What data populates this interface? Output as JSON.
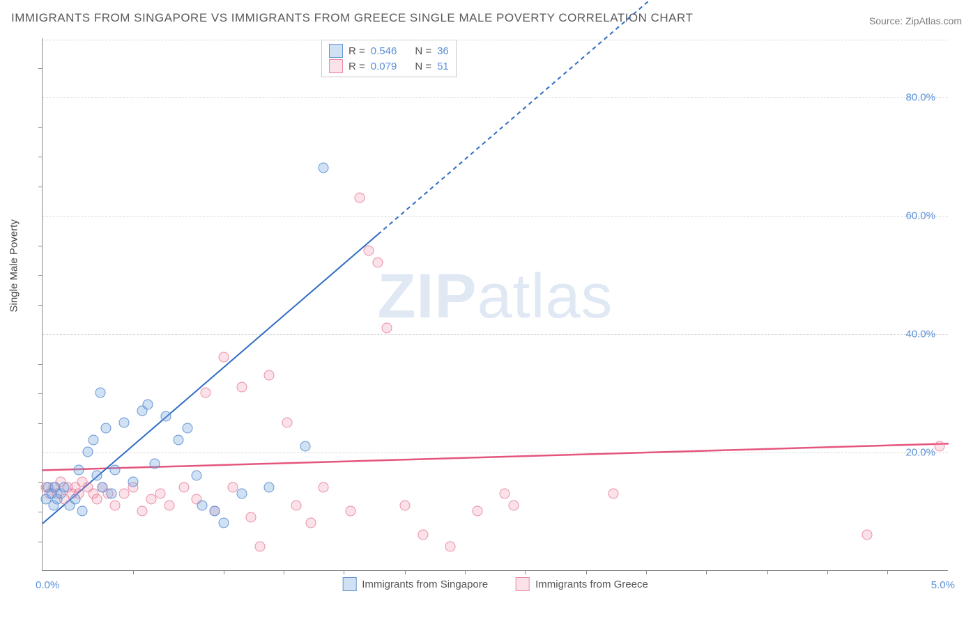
{
  "title": "IMMIGRANTS FROM SINGAPORE VS IMMIGRANTS FROM GREECE SINGLE MALE POVERTY CORRELATION CHART",
  "source": "Source: ZipAtlas.com",
  "y_axis_label": "Single Male Poverty",
  "watermark": "ZIPatlas",
  "chart": {
    "type": "scatter",
    "xlim": [
      0.0,
      5.0
    ],
    "ylim": [
      0.0,
      90.0
    ],
    "y_ticks": [
      20.0,
      40.0,
      60.0,
      80.0
    ],
    "y_tick_labels": [
      "20.0%",
      "40.0%",
      "60.0%",
      "80.0%"
    ],
    "x_range_labels": {
      "min": "0.0%",
      "max": "5.0%"
    },
    "x_minor_ticks": [
      0.5,
      1.0,
      1.33,
      1.66,
      2.0,
      2.33,
      2.66,
      3.0,
      3.33,
      3.66,
      4.0,
      4.33,
      4.66
    ],
    "y_minor_ticks": [
      5,
      10,
      15,
      25,
      30,
      35,
      45,
      50,
      55,
      65,
      70,
      75,
      85
    ],
    "background_color": "#ffffff",
    "grid_color": "#d8d8d8",
    "axis_color": "#888888",
    "tick_label_color": "#5b8fd6",
    "title_color": "#5a5a5a",
    "title_fontsize": 17,
    "label_fontsize": 15,
    "marker_size": 15
  },
  "series": {
    "singapore": {
      "label": "Immigrants from Singapore",
      "fill_color": "rgba(120,168,224,0.35)",
      "stroke_color": "rgba(90,140,210,0.9)",
      "R": "0.546",
      "N": "36",
      "trend": {
        "y_at_x0": 8.0,
        "y_at_xmax": 140.0,
        "solid_until_x": 1.85,
        "line_color": "#2d6bc4",
        "line_width": 2,
        "dash": "6,5"
      },
      "points": [
        [
          0.02,
          12
        ],
        [
          0.03,
          14
        ],
        [
          0.05,
          13
        ],
        [
          0.06,
          11
        ],
        [
          0.07,
          14
        ],
        [
          0.08,
          12
        ],
        [
          0.1,
          13
        ],
        [
          0.12,
          14
        ],
        [
          0.15,
          11
        ],
        [
          0.18,
          12
        ],
        [
          0.2,
          17
        ],
        [
          0.22,
          10
        ],
        [
          0.25,
          20
        ],
        [
          0.28,
          22
        ],
        [
          0.3,
          16
        ],
        [
          0.33,
          14
        ],
        [
          0.35,
          24
        ],
        [
          0.32,
          30
        ],
        [
          0.38,
          13
        ],
        [
          0.4,
          17
        ],
        [
          0.45,
          25
        ],
        [
          0.5,
          15
        ],
        [
          0.55,
          27
        ],
        [
          0.58,
          28
        ],
        [
          0.62,
          18
        ],
        [
          0.68,
          26
        ],
        [
          0.75,
          22
        ],
        [
          0.8,
          24
        ],
        [
          0.85,
          16
        ],
        [
          0.88,
          11
        ],
        [
          0.95,
          10
        ],
        [
          1.0,
          8
        ],
        [
          1.1,
          13
        ],
        [
          1.25,
          14
        ],
        [
          1.45,
          21
        ],
        [
          1.55,
          68
        ]
      ]
    },
    "greece": {
      "label": "Immigrants from Greece",
      "fill_color": "rgba(238,140,164,0.25)",
      "stroke_color": "rgba(230,120,150,0.8)",
      "R": "0.079",
      "N": "51",
      "trend": {
        "y_at_x0": 17.0,
        "y_at_xmax": 21.5,
        "line_color": "#e4557d",
        "line_width": 2.5
      },
      "points": [
        [
          0.02,
          14
        ],
        [
          0.04,
          13
        ],
        [
          0.06,
          14
        ],
        [
          0.08,
          13
        ],
        [
          0.1,
          15
        ],
        [
          0.12,
          12
        ],
        [
          0.14,
          14
        ],
        [
          0.16,
          13
        ],
        [
          0.18,
          14
        ],
        [
          0.2,
          13
        ],
        [
          0.22,
          15
        ],
        [
          0.25,
          14
        ],
        [
          0.28,
          13
        ],
        [
          0.3,
          12
        ],
        [
          0.33,
          14
        ],
        [
          0.36,
          13
        ],
        [
          0.4,
          11
        ],
        [
          0.45,
          13
        ],
        [
          0.5,
          14
        ],
        [
          0.55,
          10
        ],
        [
          0.6,
          12
        ],
        [
          0.65,
          13
        ],
        [
          0.7,
          11
        ],
        [
          0.78,
          14
        ],
        [
          0.85,
          12
        ],
        [
          0.9,
          30
        ],
        [
          0.95,
          10
        ],
        [
          1.0,
          36
        ],
        [
          1.05,
          14
        ],
        [
          1.1,
          31
        ],
        [
          1.15,
          9
        ],
        [
          1.2,
          4
        ],
        [
          1.25,
          33
        ],
        [
          1.35,
          25
        ],
        [
          1.4,
          11
        ],
        [
          1.48,
          8
        ],
        [
          1.55,
          14
        ],
        [
          1.7,
          10
        ],
        [
          1.75,
          63
        ],
        [
          1.8,
          54
        ],
        [
          1.85,
          52
        ],
        [
          1.9,
          41
        ],
        [
          2.0,
          11
        ],
        [
          2.1,
          6
        ],
        [
          2.25,
          4
        ],
        [
          2.4,
          10
        ],
        [
          2.55,
          13
        ],
        [
          2.6,
          11
        ],
        [
          3.15,
          13
        ],
        [
          4.55,
          6
        ],
        [
          4.95,
          21
        ]
      ]
    }
  },
  "legend": {
    "R_label": "R =",
    "N_label": "N ="
  },
  "bottom_legend": {
    "items": [
      "Immigrants from Singapore",
      "Immigrants from Greece"
    ]
  }
}
